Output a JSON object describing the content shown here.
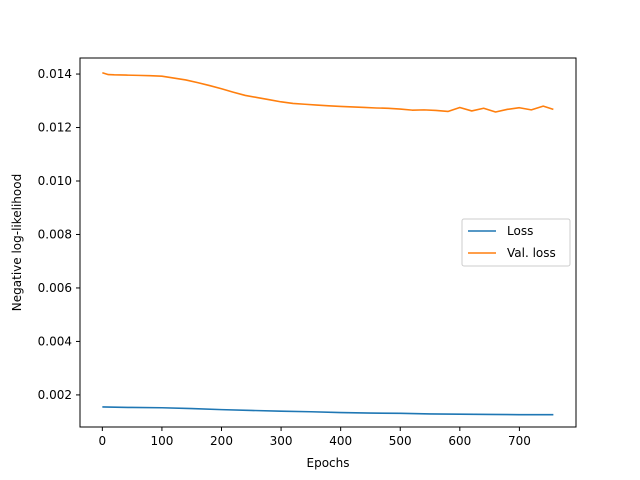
{
  "chart_data": {
    "type": "line",
    "title": "",
    "xlabel": "Epochs",
    "ylabel": "Negative log-likelihood",
    "xlim": [
      -37.5,
      795
    ],
    "ylim": [
      0.0008,
      0.0146
    ],
    "xticks": [
      0,
      100,
      200,
      300,
      400,
      500,
      600,
      700
    ],
    "yticks": [
      0.002,
      0.004,
      0.006,
      0.008,
      0.01,
      0.012,
      0.014
    ],
    "ytick_labels": [
      "0.002",
      "0.004",
      "0.006",
      "0.008",
      "0.010",
      "0.012",
      "0.014"
    ],
    "grid": false,
    "legend": "center-right",
    "series": [
      {
        "name": "Loss",
        "color": "#1f77b4",
        "x": [
          0,
          50,
          100,
          150,
          200,
          250,
          300,
          350,
          400,
          450,
          500,
          550,
          600,
          650,
          700,
          757
        ],
        "y": [
          0.00155,
          0.00153,
          0.00152,
          0.00149,
          0.00145,
          0.00142,
          0.00139,
          0.00137,
          0.00134,
          0.00132,
          0.00131,
          0.00129,
          0.00128,
          0.00127,
          0.00126,
          0.00126
        ]
      },
      {
        "name": "Val. loss",
        "color": "#ff7f0e",
        "x": [
          0,
          10,
          20,
          40,
          60,
          80,
          100,
          120,
          140,
          160,
          180,
          200,
          220,
          240,
          260,
          280,
          300,
          320,
          340,
          360,
          380,
          400,
          420,
          440,
          460,
          480,
          500,
          520,
          540,
          560,
          580,
          600,
          620,
          640,
          660,
          680,
          700,
          720,
          740,
          757
        ],
        "y": [
          0.01405,
          0.01398,
          0.01397,
          0.01396,
          0.01395,
          0.01394,
          0.01392,
          0.01385,
          0.01378,
          0.01368,
          0.01357,
          0.01345,
          0.01332,
          0.0132,
          0.01312,
          0.01304,
          0.01296,
          0.0129,
          0.01287,
          0.01284,
          0.01281,
          0.01279,
          0.01277,
          0.01275,
          0.01273,
          0.01272,
          0.01269,
          0.01265,
          0.01266,
          0.01264,
          0.0126,
          0.01275,
          0.01262,
          0.01272,
          0.01258,
          0.01268,
          0.01274,
          0.01266,
          0.0128,
          0.01268
        ]
      }
    ]
  }
}
